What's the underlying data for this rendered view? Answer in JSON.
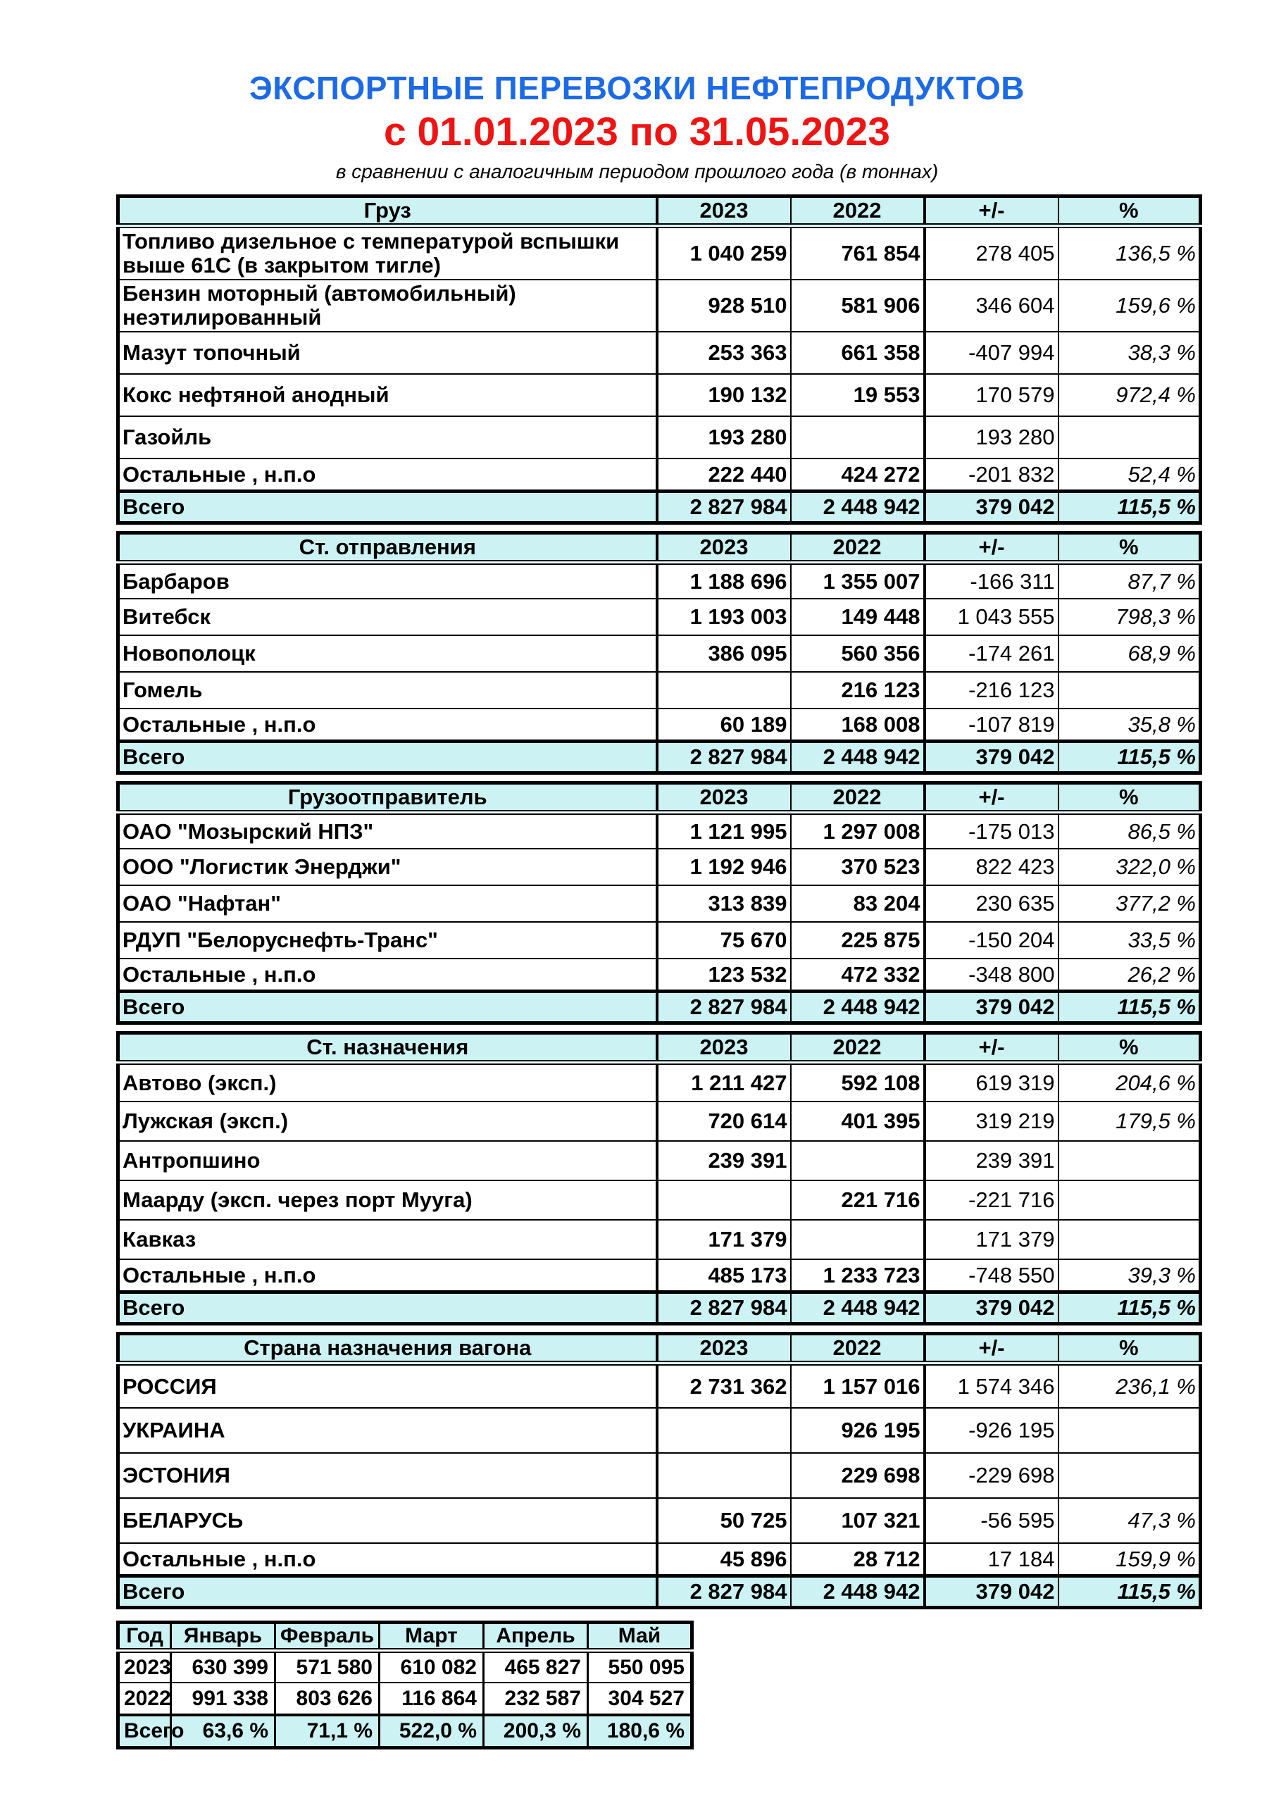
{
  "title": "ЭКСПОРТНЫЕ ПЕРЕВОЗКИ НЕФТЕПРОДУКТОВ",
  "period": "с 01.01.2023 по 31.05.2023",
  "note": "в сравнении с аналогичным периодом прошлого года (в тоннах)",
  "colors": {
    "title_blue": "#1D6AE5",
    "period_red": "#EE1414",
    "header_fill": "#CCF2F4",
    "border": "#000000"
  },
  "columns": [
    "2023",
    "2022",
    "+/-",
    "%"
  ],
  "tables": [
    {
      "header": "Груз",
      "rows": [
        {
          "label": "Топливо дизельное с температурой вспышки выше 61С (в закрытом тигле)",
          "y2023": "1 040 259",
          "y2022": "761 854",
          "delta": "278 405",
          "pct": "136,5 %"
        },
        {
          "label": "Бензин моторный (автомобильный) неэтилированный",
          "y2023": "928 510",
          "y2022": "581 906",
          "delta": "346 604",
          "pct": "159,6 %"
        },
        {
          "label": "Мазут топочный",
          "y2023": "253 363",
          "y2022": "661 358",
          "delta": "-407 994",
          "pct": "38,3 %"
        },
        {
          "label": "Кокс нефтяной анодный",
          "y2023": "190 132",
          "y2022": "19 553",
          "delta": "170 579",
          "pct": "972,4 %"
        },
        {
          "label": "Газойль",
          "y2023": "193 280",
          "y2022": "",
          "delta": "193 280",
          "pct": ""
        },
        {
          "label": "Остальные , н.п.о",
          "y2023": "222 440",
          "y2022": "424 272",
          "delta": "-201 832",
          "pct": "52,4 %"
        }
      ],
      "total": {
        "label": "Всего",
        "y2023": "2 827 984",
        "y2022": "2 448 942",
        "delta": "379 042",
        "pct": "115,5 %"
      }
    },
    {
      "header": "Ст. отправления",
      "rows": [
        {
          "label": "Барбаров",
          "y2023": "1 188 696",
          "y2022": "1 355 007",
          "delta": "-166 311",
          "pct": "87,7 %"
        },
        {
          "label": "Витебск",
          "y2023": "1 193 003",
          "y2022": "149 448",
          "delta": "1 043 555",
          "pct": "798,3 %"
        },
        {
          "label": "Новополоцк",
          "y2023": "386 095",
          "y2022": "560 356",
          "delta": "-174 261",
          "pct": "68,9 %"
        },
        {
          "label": "Гомель",
          "y2023": "",
          "y2022": "216 123",
          "delta": "-216 123",
          "pct": ""
        },
        {
          "label": "Остальные , н.п.о",
          "y2023": "60 189",
          "y2022": "168 008",
          "delta": "-107 819",
          "pct": "35,8 %"
        }
      ],
      "total": {
        "label": "Всего",
        "y2023": "2 827 984",
        "y2022": "2 448 942",
        "delta": "379 042",
        "pct": "115,5 %"
      }
    },
    {
      "header": "Грузоотправитель",
      "rows": [
        {
          "label": "ОАО \"Мозырский НПЗ\"",
          "y2023": "1 121 995",
          "y2022": "1 297 008",
          "delta": "-175 013",
          "pct": "86,5 %"
        },
        {
          "label": "ООО \"Логистик Энерджи\"",
          "y2023": "1 192 946",
          "y2022": "370 523",
          "delta": "822 423",
          "pct": "322,0 %"
        },
        {
          "label": "ОАО \"Нафтан\"",
          "y2023": "313 839",
          "y2022": "83 204",
          "delta": "230 635",
          "pct": "377,2 %"
        },
        {
          "label": "РДУП \"Белоруснефть-Транс\"",
          "y2023": "75 670",
          "y2022": "225 875",
          "delta": "-150 204",
          "pct": "33,5 %"
        },
        {
          "label": "Остальные , н.п.о",
          "y2023": "123 532",
          "y2022": "472 332",
          "delta": "-348 800",
          "pct": "26,2 %"
        }
      ],
      "total": {
        "label": "Всего",
        "y2023": "2 827 984",
        "y2022": "2 448 942",
        "delta": "379 042",
        "pct": "115,5 %"
      }
    },
    {
      "header": "Ст. назначения",
      "rows": [
        {
          "label": "Автово (эксп.)",
          "y2023": "1 211 427",
          "y2022": "592 108",
          "delta": "619 319",
          "pct": "204,6 %"
        },
        {
          "label": "Лужская (эксп.)",
          "y2023": "720 614",
          "y2022": "401 395",
          "delta": "319 219",
          "pct": "179,5 %"
        },
        {
          "label": "Антропшино",
          "y2023": "239 391",
          "y2022": "",
          "delta": "239 391",
          "pct": ""
        },
        {
          "label": "Маарду (эксп. через порт Мууга)",
          "y2023": "",
          "y2022": "221 716",
          "delta": "-221 716",
          "pct": ""
        },
        {
          "label": "Кавказ",
          "y2023": "171 379",
          "y2022": "",
          "delta": "171 379",
          "pct": ""
        },
        {
          "label": "Остальные , н.п.о",
          "y2023": "485 173",
          "y2022": "1 233 723",
          "delta": "-748 550",
          "pct": "39,3 %"
        }
      ],
      "total": {
        "label": "Всего",
        "y2023": "2 827 984",
        "y2022": "2 448 942",
        "delta": "379 042",
        "pct": "115,5 %"
      }
    },
    {
      "header": "Страна назначения вагона",
      "rows": [
        {
          "label": "РОССИЯ",
          "y2023": "2 731 362",
          "y2022": "1 157 016",
          "delta": "1 574 346",
          "pct": "236,1 %"
        },
        {
          "label": "УКРАИНА",
          "y2023": "",
          "y2022": "926 195",
          "delta": "-926 195",
          "pct": ""
        },
        {
          "label": "ЭСТОНИЯ",
          "y2023": "",
          "y2022": "229 698",
          "delta": "-229 698",
          "pct": ""
        },
        {
          "label": "БЕЛАРУСЬ",
          "y2023": "50 725",
          "y2022": "107 321",
          "delta": "-56 595",
          "pct": "47,3 %"
        },
        {
          "label": "Остальные , н.п.о",
          "y2023": "45 896",
          "y2022": "28 712",
          "delta": "17 184",
          "pct": "159,9 %"
        }
      ],
      "total": {
        "label": "Всего",
        "y2023": "2 827 984",
        "y2022": "2 448 942",
        "delta": "379 042",
        "pct": "115,5 %"
      }
    }
  ],
  "months_table": {
    "headers": [
      "Год",
      "Январь",
      "Февраль",
      "Март",
      "Апрель",
      "Май"
    ],
    "rows": [
      {
        "label": "2023",
        "values": [
          "630 399",
          "571 580",
          "610 082",
          "465 827",
          "550 095"
        ]
      },
      {
        "label": "2022",
        "values": [
          "991 338",
          "803 626",
          "116 864",
          "232 587",
          "304 527"
        ]
      }
    ],
    "total": {
      "label": "Всего",
      "values": [
        "63,6 %",
        "71,1 %",
        "522,0 %",
        "200,3 %",
        "180,6 %"
      ]
    }
  }
}
